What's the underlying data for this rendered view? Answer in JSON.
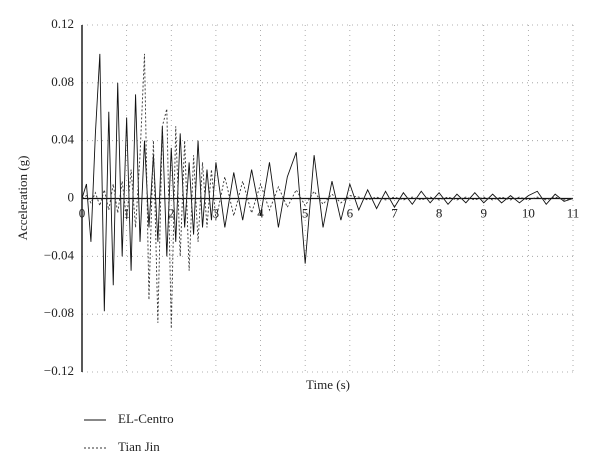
{
  "chart_data": {
    "type": "line",
    "x_label": "Time (s)",
    "y_label": "Acceleration (g)",
    "x": [
      0,
      0.1,
      0.2,
      0.3,
      0.4,
      0.5,
      0.6,
      0.7,
      0.8,
      0.9,
      1.0,
      1.1,
      1.2,
      1.3,
      1.4,
      1.5,
      1.6,
      1.7,
      1.8,
      1.9,
      2.0,
      2.1,
      2.2,
      2.3,
      2.4,
      2.5,
      2.6,
      2.7,
      2.8,
      2.9,
      3.0,
      3.2,
      3.4,
      3.6,
      3.8,
      4.0,
      4.2,
      4.4,
      4.6,
      4.8,
      5.0,
      5.2,
      5.4,
      5.6,
      5.8,
      6.0,
      6.2,
      6.4,
      6.6,
      6.8,
      7.0,
      7.2,
      7.4,
      7.6,
      7.8,
      8.0,
      8.2,
      8.4,
      8.6,
      8.8,
      9.0,
      9.2,
      9.4,
      9.6,
      9.8,
      10.0,
      10.2,
      10.4,
      10.6,
      10.8,
      11.0
    ],
    "series": [
      {
        "name": "EL-Centro",
        "color": "#111111",
        "dash": "none",
        "values": [
          0,
          0.01,
          -0.03,
          0.045,
          0.1,
          -0.078,
          0.06,
          -0.06,
          0.08,
          -0.04,
          0.056,
          -0.05,
          0.072,
          -0.03,
          0.04,
          -0.02,
          0.03,
          -0.03,
          0.05,
          -0.04,
          0.035,
          -0.03,
          0.045,
          -0.02,
          0.025,
          -0.025,
          0.04,
          -0.02,
          0.02,
          -0.015,
          0.025,
          -0.02,
          0.018,
          -0.015,
          0.02,
          -0.012,
          0.025,
          -0.02,
          0.015,
          0.032,
          -0.045,
          0.03,
          -0.02,
          0.012,
          -0.015,
          0.01,
          -0.008,
          0.006,
          -0.007,
          0.005,
          -0.006,
          0.004,
          -0.004,
          0.005,
          -0.003,
          0.004,
          -0.004,
          0.003,
          -0.003,
          0.004,
          -0.003,
          0.003,
          -0.003,
          0.002,
          -0.003,
          0.002,
          0.005,
          -0.004,
          0.003,
          -0.002,
          0
        ]
      },
      {
        "name": "Tian Jin",
        "color": "#333333",
        "dash": "2 2",
        "values": [
          0,
          0.002,
          -0.003,
          0.004,
          -0.005,
          0.006,
          -0.008,
          0.01,
          -0.01,
          0.012,
          -0.015,
          0.02,
          -0.02,
          0.03,
          0.1,
          -0.07,
          0.04,
          -0.086,
          0.05,
          0.062,
          -0.09,
          0.05,
          -0.04,
          0.04,
          -0.05,
          0.03,
          -0.03,
          0.025,
          -0.02,
          0.02,
          -0.015,
          0.015,
          -0.012,
          0.012,
          -0.01,
          0.01,
          -0.008,
          0.008,
          -0.006,
          0.006,
          -0.005,
          0.005,
          -0.004,
          0.003,
          -0.003,
          0.002,
          0.001,
          -0.001,
          0.001,
          -0.001,
          0.001,
          -0.001,
          0.001,
          -0.001,
          0.001,
          -0.001,
          0.001,
          -0.001,
          0.001,
          -0.001,
          0.001,
          -0.001,
          0.001,
          -0.001,
          0.001,
          -0.001,
          0.001,
          -0.001,
          0.001,
          -0.001,
          0
        ]
      }
    ],
    "xlim": [
      0,
      11
    ],
    "xticks": [
      0,
      1,
      2,
      3,
      4,
      5,
      6,
      7,
      8,
      9,
      10,
      11
    ],
    "ylim": [
      -0.12,
      0.12
    ],
    "yticks": [
      {
        "value": -0.12,
        "label": "−0.12"
      },
      {
        "value": -0.08,
        "label": "−0.08"
      },
      {
        "value": -0.04,
        "label": "−0.04"
      },
      0,
      0.04,
      0.08,
      0.12
    ],
    "grid": true
  }
}
